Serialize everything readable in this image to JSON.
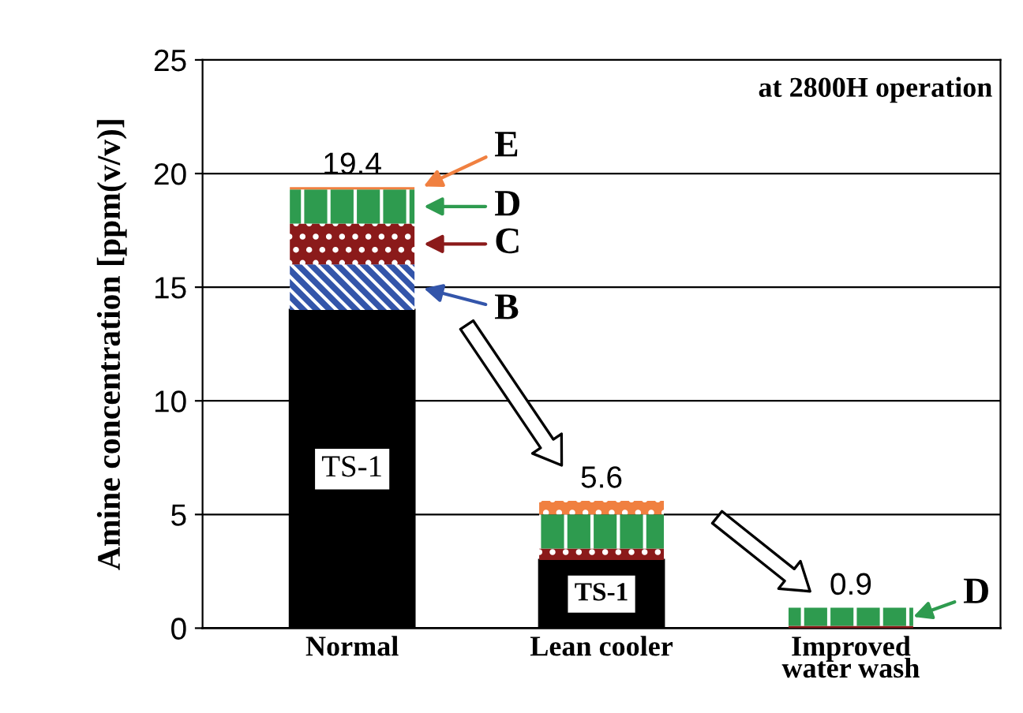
{
  "chart_data": {
    "type": "bar",
    "stacked": true,
    "ylabel": "Amine concentration [ppm(v/v)]",
    "categories": [
      "Normal",
      "Lean cooler",
      "Improved\nwater wash"
    ],
    "series": [
      {
        "name": "TS-1",
        "color": "#000000",
        "values": [
          14.0,
          3.0,
          0
        ]
      },
      {
        "name": "B",
        "color": "#3355aa",
        "values": [
          2.0,
          0,
          0
        ]
      },
      {
        "name": "C",
        "color": "#8b1a1a",
        "values": [
          1.8,
          0.5,
          0.1
        ]
      },
      {
        "name": "D",
        "color": "#2e9b4f",
        "values": [
          1.5,
          1.5,
          0.8
        ]
      },
      {
        "name": "E",
        "color": "#f08040",
        "values": [
          0.1,
          0.6,
          0
        ]
      }
    ],
    "totals": [
      "19.4",
      "5.6",
      "0.9"
    ],
    "annotations": [
      "at 2800H operation"
    ],
    "ylim": [
      0,
      25
    ],
    "yticks": [
      0,
      5,
      10,
      15,
      20,
      25
    ],
    "grid": "y"
  }
}
